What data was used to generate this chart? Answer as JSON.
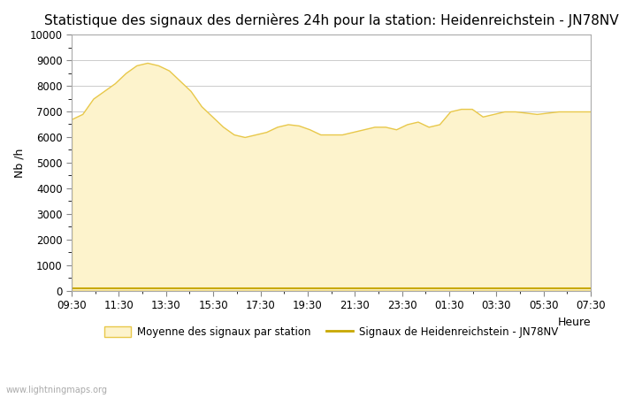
{
  "title": "Statistique des signaux des dernières 24h pour la station: Heidenreichstein - JN78NV",
  "xlabel": "Heure",
  "ylabel": "Nb /h",
  "ylim": [
    0,
    10000
  ],
  "yticks": [
    0,
    1000,
    2000,
    3000,
    4000,
    5000,
    6000,
    7000,
    8000,
    9000,
    10000
  ],
  "xtick_labels": [
    "09:30",
    "11:30",
    "13:30",
    "15:30",
    "17:30",
    "19:30",
    "21:30",
    "23:30",
    "01:30",
    "03:30",
    "05:30",
    "07:30"
  ],
  "background_color": "#ffffff",
  "fill_color": "#fdf3cc",
  "fill_edge_color": "#e8c84a",
  "line_color": "#c8a800",
  "watermark": "www.lightningmaps.org",
  "legend_fill_label": "Moyenne des signaux par station",
  "legend_line_label": "Signaux de Heidenreichstein - JN78NV",
  "x_values": [
    0,
    1,
    2,
    3,
    4,
    5,
    6,
    7,
    8,
    9,
    10,
    11,
    12,
    13,
    14,
    15,
    16,
    17,
    18,
    19,
    20,
    21,
    22,
    23,
    24,
    25,
    26,
    27,
    28,
    29,
    30,
    31,
    32,
    33,
    34,
    35,
    36,
    37,
    38,
    39,
    40,
    41,
    42,
    43,
    44,
    45,
    46,
    47,
    48
  ],
  "y_fill": [
    6700,
    6900,
    7500,
    7800,
    8100,
    8500,
    8800,
    8900,
    8800,
    8600,
    8200,
    7800,
    7200,
    6800,
    6400,
    6100,
    6000,
    6100,
    6200,
    6400,
    6500,
    6450,
    6300,
    6100,
    6100,
    6100,
    6200,
    6300,
    6400,
    6400,
    6300,
    6500,
    6600,
    6400,
    6500,
    7000,
    7100,
    7100,
    6800,
    6900,
    7000,
    7000,
    6950,
    6900,
    6950,
    7000,
    7000,
    7000,
    7000
  ],
  "y_line": [
    100,
    100,
    100,
    100,
    100,
    100,
    100,
    100,
    100,
    100,
    100,
    100,
    100,
    100,
    100,
    100,
    100,
    100,
    100,
    100,
    100,
    100,
    100,
    100,
    100,
    100,
    100,
    100,
    100,
    100,
    100,
    100,
    100,
    100,
    100,
    100,
    100,
    100,
    100,
    100,
    100,
    100,
    100,
    100,
    100,
    100,
    100,
    100,
    100
  ]
}
